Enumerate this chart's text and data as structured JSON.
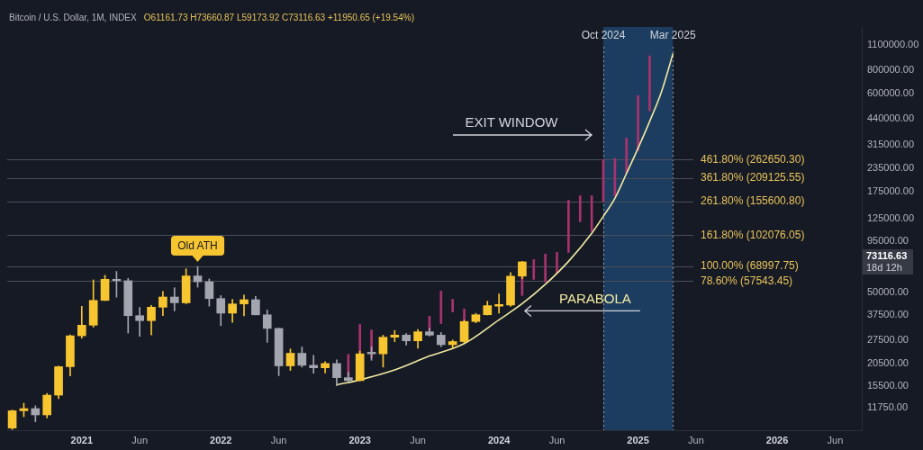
{
  "chart_data": {
    "type": "candlestick",
    "title": "Bitcoin / U.S. Dollar, 1M, INDEX",
    "subtitle": "O61161.73 H73660.87 L59173.92 C73116.63 +11950.65 (+19.54%)",
    "x": [
      "2020-07",
      "2020-08",
      "2020-09",
      "2020-10",
      "2020-11",
      "2020-12",
      "2021-01",
      "2021-02",
      "2021-03",
      "2021-04",
      "2021-05",
      "2021-06",
      "2021-07",
      "2021-08",
      "2021-09",
      "2021-10",
      "2021-11",
      "2021-12",
      "2022-01",
      "2022-02",
      "2022-03",
      "2022-04",
      "2022-05",
      "2022-06",
      "2022-07",
      "2022-08",
      "2022-09",
      "2022-10",
      "2022-11",
      "2022-12",
      "2023-01",
      "2023-02",
      "2023-03",
      "2023-04",
      "2023-05",
      "2023-06",
      "2023-07",
      "2023-08",
      "2023-09",
      "2023-10",
      "2023-11",
      "2023-12",
      "2024-01",
      "2024-02",
      "2024-03"
    ],
    "ohlc": [
      [
        9140,
        11450,
        8980,
        11350
      ],
      [
        11350,
        12470,
        10540,
        11660
      ],
      [
        11660,
        12070,
        9880,
        10780
      ],
      [
        10780,
        14100,
        10380,
        13800
      ],
      [
        13800,
        19860,
        13220,
        19700
      ],
      [
        19700,
        29300,
        17570,
        28990
      ],
      [
        28990,
        41950,
        28130,
        33110
      ],
      [
        33110,
        58350,
        32300,
        45140
      ],
      [
        45140,
        61790,
        45000,
        58800
      ],
      [
        58800,
        64850,
        47000,
        57750
      ],
      [
        57750,
        59500,
        30000,
        37300
      ],
      [
        37300,
        41300,
        28800,
        35040
      ],
      [
        35040,
        42400,
        29300,
        41460
      ],
      [
        41460,
        50500,
        37300,
        47100
      ],
      [
        47100,
        52900,
        39600,
        43800
      ],
      [
        43800,
        67000,
        43300,
        61300
      ],
      [
        61300,
        69000,
        53300,
        57000
      ],
      [
        57000,
        59100,
        42000,
        46200
      ],
      [
        46200,
        47900,
        32900,
        38480
      ],
      [
        38480,
        45800,
        34300,
        43180
      ],
      [
        43180,
        48200,
        37200,
        45530
      ],
      [
        45530,
        47400,
        37600,
        37700
      ],
      [
        37700,
        40000,
        26700,
        31800
      ],
      [
        31800,
        31900,
        17600,
        19900
      ],
      [
        19900,
        24600,
        18800,
        23300
      ],
      [
        23300,
        25200,
        19600,
        20050
      ],
      [
        20050,
        22700,
        18150,
        19430
      ],
      [
        19430,
        21000,
        18200,
        20500
      ],
      [
        20500,
        21450,
        15500,
        17170
      ],
      [
        17170,
        18400,
        16300,
        16550
      ],
      [
        16550,
        23950,
        16500,
        23130
      ],
      [
        23600,
        25250,
        21350,
        23130
      ],
      [
        23130,
        29200,
        19600,
        28480
      ],
      [
        28480,
        31000,
        26950,
        29250
      ],
      [
        29250,
        29850,
        25800,
        27220
      ],
      [
        27220,
        31400,
        24800,
        30480
      ],
      [
        30480,
        31800,
        28900,
        29230
      ],
      [
        29230,
        30200,
        25300,
        25940
      ],
      [
        25940,
        27500,
        24900,
        26970
      ],
      [
        26970,
        35200,
        26550,
        34660
      ],
      [
        34660,
        38400,
        34100,
        37720
      ],
      [
        37720,
        44700,
        37600,
        42280
      ],
      [
        42000,
        48970,
        38500,
        42900
      ],
      [
        42580,
        63900,
        41880,
        61130
      ],
      [
        61161.73,
        73660.87,
        59173.92,
        73116.63
      ]
    ],
    "colors": [
      "#f7c530",
      "#f7c530",
      "#a3a6af",
      "#f7c530",
      "#f7c530",
      "#f7c530",
      "#f7c530",
      "#f7c530",
      "#f7c530",
      "#a3a6af",
      "#a3a6af",
      "#a3a6af",
      "#f7c530",
      "#f7c530",
      "#a3a6af",
      "#f7c530",
      "#a3a6af",
      "#a3a6af",
      "#a3a6af",
      "#f7c530",
      "#f7c530",
      "#a3a6af",
      "#a3a6af",
      "#a3a6af",
      "#f7c530",
      "#a3a6af",
      "#a3a6af",
      "#f7c530",
      "#a3a6af",
      "#a3a6af",
      "#f7c530",
      "#a3a6af",
      "#f7c530",
      "#f7c530",
      "#a3a6af",
      "#f7c530",
      "#a3a6af",
      "#a3a6af",
      "#f7c530",
      "#f7c530",
      "#f7c530",
      "#f7c530",
      "#f7c530",
      "#f7c530",
      "#f7c530"
    ],
    "series": [
      {
        "type": "bar",
        "color": "#a8336f",
        "x": [
          "2022-12",
          "2023-01",
          "2023-02",
          "2023-07",
          "2023-08",
          "2023-09",
          "2023-10",
          "2024-03",
          "2024-04",
          "2024-05",
          "2024-06",
          "2024-07",
          "2024-08",
          "2024-09",
          "2024-10",
          "2024-11",
          "2024-12",
          "2025-01",
          "2025-02"
        ],
        "base": [
          17400,
          23300,
          22000,
          30900,
          33800,
          39100,
          34600,
          48000,
          58700,
          56800,
          63500,
          82300,
          121000,
          107000,
          155000,
          167000,
          222000,
          294000,
          483000
        ],
        "values": [
          5600,
          10100,
          9200,
          6100,
          16900,
          6700,
          5900,
          14000,
          16500,
          23700,
          18800,
          75700,
          46000,
          60000,
          108000,
          99000,
          122000,
          291000,
          478000
        ]
      },
      {
        "type": "line",
        "name": "PARABOLA",
        "color": "#f0eaa2",
        "x": [
          "2022-11",
          "2023-01",
          "2023-04",
          "2023-07",
          "2023-10",
          "2024-01",
          "2024-03",
          "2024-05",
          "2024-07",
          "2024-09",
          "2024-10",
          "2024-11",
          "2024-12",
          "2025-01",
          "2025-02",
          "2025-03",
          "2025-03-31"
        ],
        "values": [
          15700,
          16700,
          18900,
          22500,
          26300,
          35400,
          43300,
          55200,
          73600,
          104500,
          129200,
          161900,
          220800,
          303300,
          424000,
          608000,
          983000
        ]
      }
    ],
    "xlim": [
      "2020-06-18",
      "2026-08-10"
    ],
    "xticks": [
      {
        "value": "2021-01",
        "label": "2021"
      },
      {
        "value": "2021-06",
        "label": "Jun"
      },
      {
        "value": "2022-01",
        "label": "2022"
      },
      {
        "value": "2022-06",
        "label": "Jun"
      },
      {
        "value": "2023-01",
        "label": "2023"
      },
      {
        "value": "2023-06",
        "label": "Jun"
      },
      {
        "value": "2024-01",
        "label": "2024"
      },
      {
        "value": "2024-06",
        "label": "Jun"
      },
      {
        "value": "2025-01",
        "label": "2025"
      },
      {
        "value": "2025-06",
        "label": "Jun"
      },
      {
        "value": "2026-01",
        "label": "2026"
      },
      {
        "value": "2026-06",
        "label": "Jun"
      }
    ],
    "ylim": [
      8900,
      1380000
    ],
    "yticks": [
      {
        "value": 11750,
        "label": "11750.00"
      },
      {
        "value": 15500,
        "label": "15500.00"
      },
      {
        "value": 20500,
        "label": "20500.00"
      },
      {
        "value": 27500,
        "label": "27500.00"
      },
      {
        "value": 37500,
        "label": "37500.00"
      },
      {
        "value": 50000,
        "label": "50000.00"
      },
      {
        "value": 95000,
        "label": "95000.00"
      },
      {
        "value": 125000,
        "label": "125000.00"
      },
      {
        "value": 175000,
        "label": "175000.00"
      },
      {
        "value": 235000,
        "label": "235000.00"
      },
      {
        "value": 315000,
        "label": "315000.00"
      },
      {
        "value": 440000,
        "label": "440000.00"
      },
      {
        "value": 600000,
        "label": "600000.00"
      },
      {
        "value": 800000,
        "label": "800000.00"
      },
      {
        "value": 1100000,
        "label": "1100000.00"
      }
    ],
    "log": true,
    "ref_lines": [
      {
        "axis": "x",
        "value": "2024-10",
        "label": "Oct 2024",
        "line_style": "dotted",
        "color": "#9598a1"
      },
      {
        "axis": "x",
        "value": "2025-03-31",
        "label": "Mar 2025",
        "line_style": "dotted",
        "color": "#9598a1"
      },
      {
        "axis": "y",
        "value": 262650.3,
        "label": "461.80% (262650.30)",
        "color": "#4a4e5a"
      },
      {
        "axis": "y",
        "value": 209125.55,
        "label": "361.80% (209125.55)",
        "color": "#4a4e5a"
      },
      {
        "axis": "y",
        "value": 155600.8,
        "label": "261.80% (155600.80)",
        "color": "#4a4e5a"
      },
      {
        "axis": "y",
        "value": 102076.05,
        "label": "161.80% (102076.05)",
        "color": "#4a4e5a"
      },
      {
        "axis": "y",
        "value": 68997.75,
        "label": "100.00% (68997.75)",
        "color": "#4a4e5a"
      },
      {
        "axis": "y",
        "value": 57543.45,
        "label": "78.60% (57543.45)",
        "color": "#4a4e5a"
      }
    ],
    "bands": [
      {
        "axis": "x",
        "from": "2024-10",
        "to": "2025-03-31",
        "color": "#1d3d60"
      }
    ],
    "annotations": [
      "EXIT WINDOW",
      "73116.63 18d 12h",
      {
        "text": "Old ATH",
        "x": "2021-11",
        "y": 69000
      }
    ]
  }
}
